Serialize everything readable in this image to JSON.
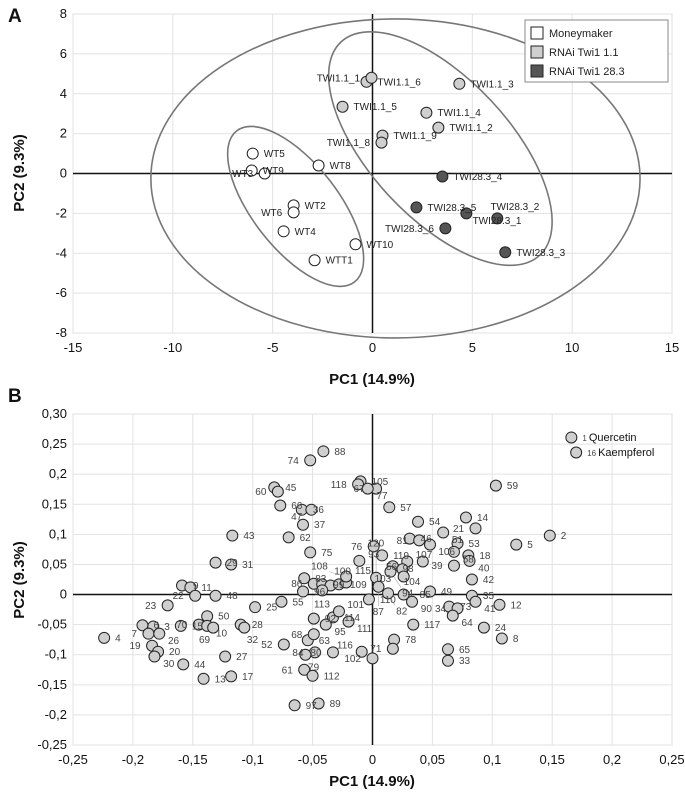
{
  "chart_data": [
    {
      "panel_label": "A",
      "type": "scatter",
      "xlabel": "PC1 (14.9%)",
      "ylabel": "PC2 (9.3%)",
      "xlim": [
        -15,
        15
      ],
      "ylim": [
        -8,
        8
      ],
      "xticks": [
        -15,
        -10,
        -5,
        0,
        5,
        10,
        15
      ],
      "yticks": [
        -8,
        -6,
        -4,
        -2,
        0,
        2,
        4,
        6,
        8
      ],
      "grid": true,
      "legend": {
        "placement": "top-right",
        "entries": [
          {
            "name": "Moneymaker",
            "color": "#ffffff"
          },
          {
            "name": "RNAi Twi1 1.1",
            "color": "#cfcfcf"
          },
          {
            "name": "RNAi Twi1 28.3",
            "color": "#555555"
          }
        ]
      },
      "series": [
        {
          "name": "Moneymaker",
          "color": "#ffffff",
          "points": [
            {
              "label": "WT5",
              "x": -6.0,
              "y": 1.0
            },
            {
              "label": "WT9",
              "x": -6.05,
              "y": 0.15
            },
            {
              "label": "WT3",
              "x": -5.4,
              "y": 0.0
            },
            {
              "label": "WT8",
              "x": -2.7,
              "y": 0.4
            },
            {
              "label": "WT2",
              "x": -3.95,
              "y": -1.6
            },
            {
              "label": "WT6",
              "x": -3.95,
              "y": -1.95
            },
            {
              "label": "WT4",
              "x": -4.45,
              "y": -2.9
            },
            {
              "label": "WT10",
              "x": -0.85,
              "y": -3.55
            },
            {
              "label": "WTT1",
              "x": -2.9,
              "y": -4.35
            }
          ]
        },
        {
          "name": "RNAi Twi1 1.1",
          "color": "#cfcfcf",
          "points": [
            {
              "label": "TWI1.1_6",
              "x": -0.3,
              "y": 4.6
            },
            {
              "label": "TWI1.1_1",
              "x": -0.05,
              "y": 4.8
            },
            {
              "label": "TWI1.1_5",
              "x": -1.5,
              "y": 3.35
            },
            {
              "label": "TWI1.1_3",
              "x": 4.35,
              "y": 4.5
            },
            {
              "label": "TWI1.1_4",
              "x": 2.7,
              "y": 3.05
            },
            {
              "label": "TWI1.1_2",
              "x": 3.3,
              "y": 2.3
            },
            {
              "label": "TWI1.1_9",
              "x": 0.5,
              "y": 1.9
            },
            {
              "label": "TWI1.1_8",
              "x": 0.45,
              "y": 1.55
            }
          ]
        },
        {
          "name": "RNAi Twi1 28.3",
          "color": "#555555",
          "points": [
            {
              "label": "TWI28.3_4",
              "x": 3.5,
              "y": -0.15
            },
            {
              "label": "TWI28.3_5",
              "x": 2.2,
              "y": -1.7
            },
            {
              "label": "TWI28.3_1",
              "x": 4.7,
              "y": -2.0
            },
            {
              "label": "TWI28.3_2",
              "x": 6.25,
              "y": -2.25
            },
            {
              "label": "TWI28.3_6",
              "x": 3.65,
              "y": -2.75
            },
            {
              "label": "TWI28.3_3",
              "x": 6.65,
              "y": -3.95
            }
          ]
        }
      ],
      "ellipses": [
        {
          "cx": 1.15,
          "cy": -0.25,
          "rx": 12.25,
          "ry": 8.0,
          "angle": 0
        },
        {
          "cx": -3.85,
          "cy": -1.65,
          "rx": 4.8,
          "ry": 2.15,
          "angle": -52
        },
        {
          "cx": 3.4,
          "cy": 1.25,
          "rx": 7.3,
          "ry": 3.5,
          "angle": -47
        }
      ]
    },
    {
      "panel_label": "B",
      "type": "scatter",
      "xlabel": "PC1 (14.9%)",
      "ylabel": "PC2 (9.3%)",
      "xlim": [
        -0.25,
        0.25
      ],
      "ylim": [
        -0.25,
        0.3
      ],
      "xticks": [
        "-0,25",
        "-0,2",
        "-0,15",
        "-0,1",
        "-0,05",
        "0",
        "0,05",
        "0,1",
        "0,15",
        "0,2",
        "0,25"
      ],
      "yticks": [
        "-0,25",
        "-0,2",
        "-0,15",
        "-0,1",
        "-0,05",
        "0",
        "0,05",
        "0,1",
        "0,15",
        "0,2",
        "0,25",
        "0,30"
      ],
      "grid": true,
      "color": "#cfcfcf",
      "points": [
        {
          "label": "1",
          "name": "Quercetin",
          "x": 0.166,
          "y": 0.261
        },
        {
          "label": "16",
          "name": "Kaempferol",
          "x": 0.17,
          "y": 0.236
        },
        {
          "label": "2",
          "x": 0.148,
          "y": 0.098
        },
        {
          "label": "5",
          "x": 0.12,
          "y": 0.083
        },
        {
          "label": "59",
          "x": 0.103,
          "y": 0.181
        },
        {
          "label": "14",
          "x": 0.078,
          "y": 0.128
        },
        {
          "label": "21",
          "x": 0.086,
          "y": 0.11
        },
        {
          "label": "54",
          "x": 0.038,
          "y": 0.121
        },
        {
          "label": "51",
          "x": 0.059,
          "y": 0.103
        },
        {
          "label": "46",
          "x": 0.031,
          "y": 0.093
        },
        {
          "label": "81",
          "x": 0.039,
          "y": 0.09
        },
        {
          "label": "106",
          "x": 0.048,
          "y": 0.083
        },
        {
          "label": "53",
          "x": 0.071,
          "y": 0.085
        },
        {
          "label": "58",
          "x": 0.068,
          "y": 0.071
        },
        {
          "label": "18",
          "x": 0.08,
          "y": 0.065
        },
        {
          "label": "40",
          "x": 0.081,
          "y": 0.056
        },
        {
          "label": "39",
          "x": 0.068,
          "y": 0.048
        },
        {
          "label": "42",
          "x": 0.083,
          "y": 0.025
        },
        {
          "label": "49",
          "x": 0.048,
          "y": 0.005
        },
        {
          "label": "35",
          "x": 0.083,
          "y": -0.002
        },
        {
          "label": "41",
          "x": 0.086,
          "y": -0.012
        },
        {
          "label": "12",
          "x": 0.106,
          "y": -0.017
        },
        {
          "label": "73",
          "x": 0.064,
          "y": -0.02
        },
        {
          "label": "34",
          "x": 0.071,
          "y": -0.023
        },
        {
          "label": "64",
          "x": 0.067,
          "y": -0.035
        },
        {
          "label": "24",
          "x": 0.093,
          "y": -0.055
        },
        {
          "label": "8",
          "x": 0.108,
          "y": -0.073
        },
        {
          "label": "117",
          "x": 0.034,
          "y": -0.05
        },
        {
          "label": "65",
          "x": 0.063,
          "y": -0.091
        },
        {
          "label": "33",
          "x": 0.063,
          "y": -0.11
        },
        {
          "label": "78",
          "x": 0.018,
          "y": -0.075
        },
        {
          "label": "71",
          "x": 0.017,
          "y": -0.09
        },
        {
          "label": "102",
          "x": 0.0,
          "y": -0.106
        },
        {
          "label": "116",
          "x": -0.009,
          "y": -0.095
        },
        {
          "label": "80",
          "x": -0.033,
          "y": -0.096
        },
        {
          "label": "84",
          "x": -0.048,
          "y": -0.096
        },
        {
          "label": "79",
          "x": -0.056,
          "y": -0.1
        },
        {
          "label": "61",
          "x": -0.057,
          "y": -0.125
        },
        {
          "label": "112",
          "x": -0.05,
          "y": -0.135
        },
        {
          "label": "97",
          "x": -0.065,
          "y": -0.184
        },
        {
          "label": "89",
          "x": -0.045,
          "y": -0.181
        },
        {
          "label": "52",
          "x": -0.074,
          "y": -0.083
        },
        {
          "label": "63",
          "x": -0.054,
          "y": -0.076
        },
        {
          "label": "68",
          "x": -0.049,
          "y": -0.066
        },
        {
          "label": "92",
          "x": -0.049,
          "y": -0.04
        },
        {
          "label": "114",
          "x": -0.033,
          "y": -0.038
        },
        {
          "label": "95",
          "x": -0.039,
          "y": -0.05
        },
        {
          "label": "111",
          "x": -0.02,
          "y": -0.045
        },
        {
          "label": "101",
          "x": -0.028,
          "y": -0.028
        },
        {
          "label": "55",
          "x": -0.076,
          "y": -0.012
        },
        {
          "label": "96",
          "x": -0.058,
          "y": 0.005
        },
        {
          "label": "83",
          "x": -0.057,
          "y": 0.027
        },
        {
          "label": "86",
          "x": -0.049,
          "y": 0.018
        },
        {
          "label": "99",
          "x": -0.042,
          "y": 0.017
        },
        {
          "label": "100",
          "x": -0.035,
          "y": 0.015
        },
        {
          "label": "109",
          "x": -0.028,
          "y": 0.017
        },
        {
          "label": "115",
          "x": -0.022,
          "y": 0.02
        },
        {
          "label": "113",
          "x": -0.042,
          "y": 0.007
        },
        {
          "label": "108",
          "x": -0.022,
          "y": 0.03
        },
        {
          "label": "110",
          "x": -0.003,
          "y": -0.008
        },
        {
          "label": "93",
          "x": -0.011,
          "y": 0.056
        },
        {
          "label": "76",
          "x": 0.001,
          "y": 0.08
        },
        {
          "label": "119",
          "x": 0.008,
          "y": 0.065
        },
        {
          "label": "98",
          "x": 0.042,
          "y": 0.055
        },
        {
          "label": "103",
          "x": 0.017,
          "y": 0.047
        },
        {
          "label": "107",
          "x": 0.029,
          "y": 0.055
        },
        {
          "label": "104",
          "x": 0.025,
          "y": 0.042
        },
        {
          "label": "56",
          "x": 0.026,
          "y": 0.03
        },
        {
          "label": "94",
          "x": 0.015,
          "y": 0.038
        },
        {
          "label": "120",
          "x": 0.003,
          "y": 0.028
        },
        {
          "label": "87",
          "x": 0.005,
          "y": 0.013
        },
        {
          "label": "82",
          "x": 0.013,
          "y": 0.002
        },
        {
          "label": "85",
          "x": 0.026,
          "y": 0.0
        },
        {
          "label": "90",
          "x": 0.033,
          "y": -0.012
        },
        {
          "label": "57",
          "x": 0.014,
          "y": 0.145
        },
        {
          "label": "105",
          "x": -0.01,
          "y": 0.188
        },
        {
          "label": "118",
          "x": -0.012,
          "y": 0.183
        },
        {
          "label": "67",
          "x": 0.003,
          "y": 0.176
        },
        {
          "label": "77",
          "x": -0.004,
          "y": 0.176
        },
        {
          "label": "88",
          "x": -0.041,
          "y": 0.238
        },
        {
          "label": "74",
          "x": -0.052,
          "y": 0.223
        },
        {
          "label": "45",
          "x": -0.082,
          "y": 0.178
        },
        {
          "label": "60",
          "x": -0.079,
          "y": 0.171
        },
        {
          "label": "66",
          "x": -0.077,
          "y": 0.148
        },
        {
          "label": "36",
          "x": -0.059,
          "y": 0.141
        },
        {
          "label": "47",
          "x": -0.051,
          "y": 0.141
        },
        {
          "label": "37",
          "x": -0.058,
          "y": 0.116
        },
        {
          "label": "62",
          "x": -0.07,
          "y": 0.095
        },
        {
          "label": "75",
          "x": -0.052,
          "y": 0.07
        },
        {
          "label": "43",
          "x": -0.117,
          "y": 0.098
        },
        {
          "label": "29",
          "x": -0.131,
          "y": 0.053
        },
        {
          "label": "31",
          "x": -0.118,
          "y": 0.05
        },
        {
          "label": "9",
          "x": -0.159,
          "y": 0.015
        },
        {
          "label": "11",
          "x": -0.152,
          "y": 0.012
        },
        {
          "label": "22",
          "x": -0.148,
          "y": -0.002
        },
        {
          "label": "48",
          "x": -0.131,
          "y": -0.002
        },
        {
          "label": "23",
          "x": -0.171,
          "y": -0.018
        },
        {
          "label": "50",
          "x": -0.138,
          "y": -0.036
        },
        {
          "label": "25",
          "x": -0.098,
          "y": -0.021
        },
        {
          "label": "15",
          "x": -0.16,
          "y": -0.052
        },
        {
          "label": "70",
          "x": -0.145,
          "y": -0.05
        },
        {
          "label": "10",
          "x": -0.138,
          "y": -0.052
        },
        {
          "label": "69",
          "x": -0.133,
          "y": -0.055
        },
        {
          "label": "28",
          "x": -0.11,
          "y": -0.05
        },
        {
          "label": "32",
          "x": -0.107,
          "y": -0.055
        },
        {
          "label": "6",
          "x": -0.192,
          "y": -0.051
        },
        {
          "label": "3",
          "x": -0.183,
          "y": -0.053
        },
        {
          "label": "7",
          "x": -0.187,
          "y": -0.065
        },
        {
          "label": "26",
          "x": -0.178,
          "y": -0.065
        },
        {
          "label": "4",
          "x": -0.224,
          "y": -0.072
        },
        {
          "label": "19",
          "x": -0.184,
          "y": -0.085
        },
        {
          "label": "20",
          "x": -0.179,
          "y": -0.095
        },
        {
          "label": "30",
          "x": -0.182,
          "y": -0.103
        },
        {
          "label": "27",
          "x": -0.123,
          "y": -0.103
        },
        {
          "label": "44",
          "x": -0.158,
          "y": -0.116
        },
        {
          "label": "13",
          "x": -0.141,
          "y": -0.14
        },
        {
          "label": "17",
          "x": -0.118,
          "y": -0.136
        }
      ]
    }
  ]
}
